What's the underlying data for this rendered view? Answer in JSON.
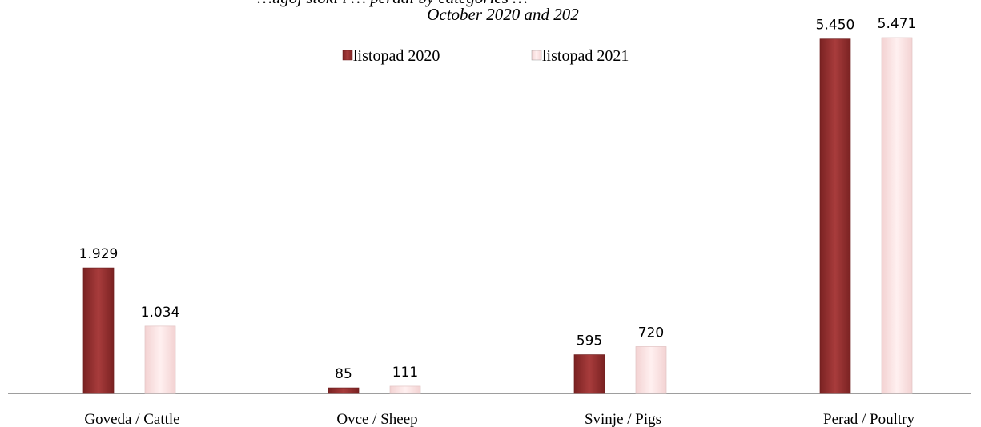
{
  "chart_data": {
    "type": "bar",
    "title": "…ugoj stoki i … peradi by categories …",
    "subtitle": "October 2020 and 202",
    "categories": [
      "Goveda / Cattle",
      "Ovce / Sheep",
      "Svinje / Pigs",
      "Perad / Poultry"
    ],
    "series": [
      {
        "name": "listopad 2020",
        "values": [
          1929,
          85,
          595,
          5450
        ],
        "labels": [
          "1.929",
          "85",
          "595",
          "5.450"
        ],
        "color": "#9b3535"
      },
      {
        "name": "listopad 2021",
        "values": [
          1034,
          111,
          720,
          5471
        ],
        "labels": [
          "1.034",
          "111",
          "720",
          "5.471"
        ],
        "color": "#fde6e6"
      }
    ],
    "ylim": [
      0,
      5800
    ],
    "grid": false,
    "legend": "top-center"
  }
}
